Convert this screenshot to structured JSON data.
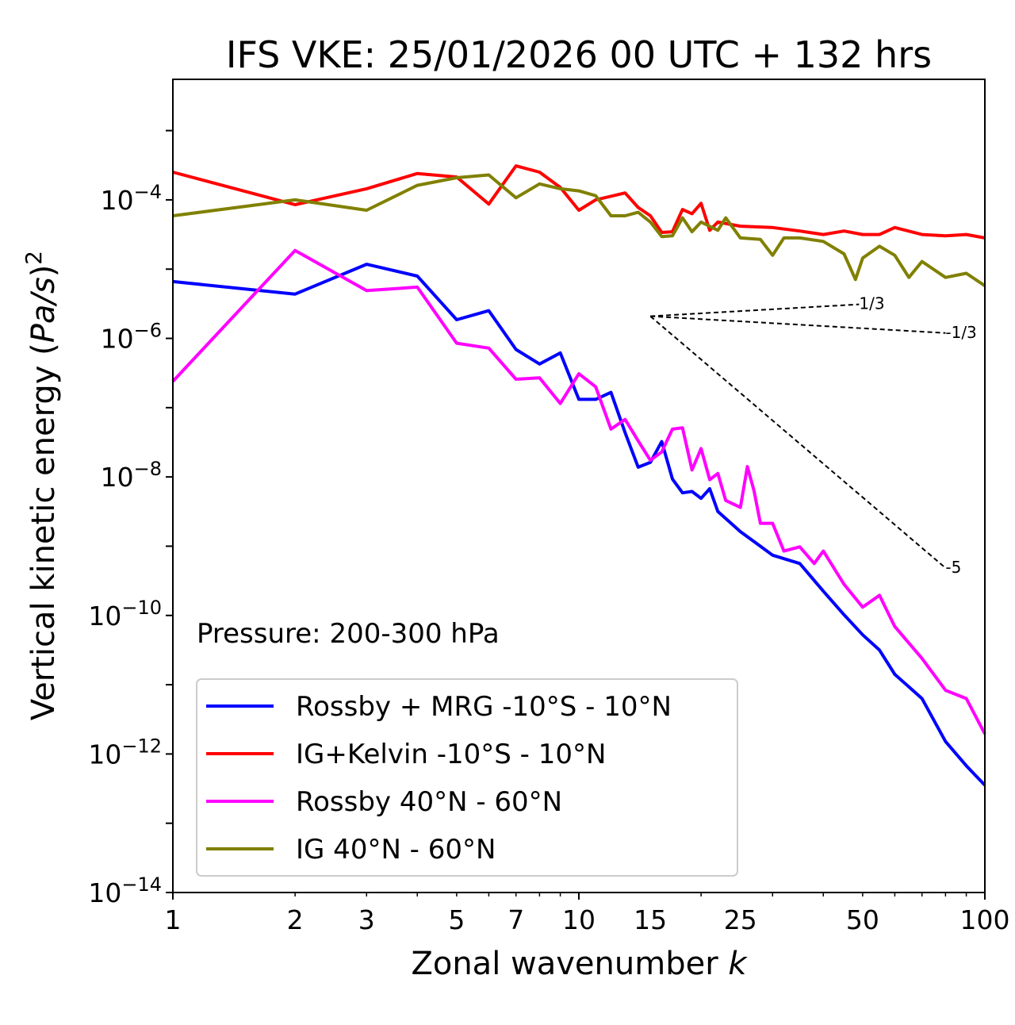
{
  "chart_data": {
    "type": "line",
    "title": "IFS VKE: 25/01/2026 00 UTC + 132 hrs",
    "xlabel": "Zonal wavenumber k",
    "xlabel_text": "Zonal wavenumber ",
    "xlabel_var": "k",
    "ylabel": "Vertical kinetic energy (Pa/s)^2",
    "ylabel_text": "Vertical kinetic energy (",
    "ylabel_var": "Pa/s",
    "ylabel_close": ")",
    "ylabel_exp": "2",
    "xscale": "log",
    "yscale": "log",
    "xlim": [
      1,
      100
    ],
    "ylim_log10": [
      -14,
      -2.26
    ],
    "xticks": [
      1,
      2,
      3,
      5,
      7,
      10,
      15,
      25,
      50,
      100
    ],
    "xtick_labels": [
      "1",
      "2",
      "3",
      "5",
      "7",
      "10",
      "15",
      "25",
      "50",
      "100"
    ],
    "yticks_log10": [
      -14,
      -12,
      -10,
      -8,
      -6,
      -4
    ],
    "annotation": "Pressure: 200-300 hPa",
    "legend_position": "lower-left",
    "series": [
      {
        "name": "Rossby + MRG -10°S - 10°N",
        "color": "#0000ff",
        "k": [
          1,
          2,
          3,
          4,
          5,
          6,
          7,
          8,
          9,
          10,
          11,
          12,
          13,
          14,
          15,
          16,
          17,
          18,
          19,
          20,
          21,
          22,
          25,
          28,
          30,
          35,
          40,
          45,
          50,
          55,
          60,
          70,
          80,
          90,
          100
        ],
        "log10_y": [
          -5.18,
          -5.36,
          -4.93,
          -5.1,
          -5.73,
          -5.6,
          -6.16,
          -6.37,
          -6.21,
          -6.88,
          -6.88,
          -6.78,
          -7.36,
          -7.86,
          -7.79,
          -7.49,
          -8.03,
          -8.23,
          -8.21,
          -8.31,
          -8.17,
          -8.5,
          -8.79,
          -9.0,
          -9.13,
          -9.25,
          -9.65,
          -9.99,
          -10.28,
          -10.5,
          -10.85,
          -11.2,
          -11.82,
          -12.17,
          -12.45
        ]
      },
      {
        "name": "IG+Kelvin -10°S - 10°N",
        "color": "#ff0000",
        "k": [
          1,
          2,
          3,
          4,
          5,
          6,
          7,
          8,
          9,
          10,
          11,
          13,
          14,
          15,
          16,
          17,
          18,
          19,
          20,
          21,
          22,
          25,
          30,
          35,
          40,
          45,
          50,
          55,
          60,
          70,
          80,
          90,
          100
        ],
        "log10_y": [
          -3.6,
          -4.07,
          -3.84,
          -3.62,
          -3.67,
          -4.06,
          -3.51,
          -3.6,
          -3.82,
          -4.15,
          -4.0,
          -3.9,
          -4.11,
          -4.23,
          -4.47,
          -4.46,
          -4.14,
          -4.2,
          -4.05,
          -4.44,
          -4.32,
          -4.38,
          -4.4,
          -4.45,
          -4.5,
          -4.45,
          -4.5,
          -4.5,
          -4.4,
          -4.5,
          -4.52,
          -4.5,
          -4.55
        ]
      },
      {
        "name": "Rossby 40°N - 60°N",
        "color": "#ff00ff",
        "k": [
          1,
          2,
          3,
          4,
          5,
          6,
          7,
          8,
          9,
          10,
          11,
          12,
          13,
          14,
          15,
          16,
          17,
          18,
          19,
          20,
          21,
          22,
          23,
          25,
          26,
          27,
          28,
          30,
          32,
          35,
          38,
          40,
          45,
          50,
          55,
          60,
          70,
          80,
          90,
          100
        ],
        "log10_y": [
          -6.62,
          -4.73,
          -5.31,
          -5.26,
          -6.07,
          -6.14,
          -6.59,
          -6.57,
          -6.94,
          -6.51,
          -6.7,
          -7.31,
          -7.17,
          -7.48,
          -7.76,
          -7.64,
          -7.31,
          -7.29,
          -7.9,
          -7.59,
          -8.04,
          -7.95,
          -8.34,
          -8.44,
          -7.85,
          -8.2,
          -8.67,
          -8.67,
          -9.07,
          -9.01,
          -9.25,
          -9.07,
          -9.55,
          -9.88,
          -9.71,
          -10.16,
          -10.62,
          -11.08,
          -11.2,
          -11.71
        ]
      },
      {
        "name": "IG 40°N - 60°N",
        "color": "#808000",
        "k": [
          1,
          2,
          3,
          4,
          5,
          6,
          7,
          8,
          9,
          10,
          11,
          12,
          13,
          14,
          15,
          16,
          17,
          18,
          19,
          20,
          22,
          23,
          25,
          28,
          30,
          32,
          35,
          40,
          45,
          48,
          50,
          55,
          60,
          65,
          70,
          80,
          90,
          100
        ],
        "log10_y": [
          -4.23,
          -4.0,
          -4.15,
          -3.79,
          -3.68,
          -3.64,
          -3.97,
          -3.77,
          -3.84,
          -3.87,
          -3.94,
          -4.23,
          -4.23,
          -4.18,
          -4.32,
          -4.53,
          -4.52,
          -4.26,
          -4.46,
          -4.32,
          -4.44,
          -4.26,
          -4.55,
          -4.57,
          -4.8,
          -4.55,
          -4.55,
          -4.6,
          -4.78,
          -5.15,
          -4.84,
          -4.67,
          -4.8,
          -5.12,
          -4.89,
          -5.12,
          -5.06,
          -5.24
        ]
      }
    ],
    "reference_slopes": [
      {
        "label": "1/3",
        "slope": 0.3333,
        "k_start": 15,
        "k_end": 49,
        "log10_y_start": -5.68
      },
      {
        "label": "-1/3",
        "slope": -0.3333,
        "k_start": 15,
        "k_end": 80,
        "log10_y_start": -5.68
      },
      {
        "label": "-5",
        "slope": -5,
        "k_start": 15,
        "k_end": 80,
        "log10_y_start": -5.68
      }
    ]
  }
}
